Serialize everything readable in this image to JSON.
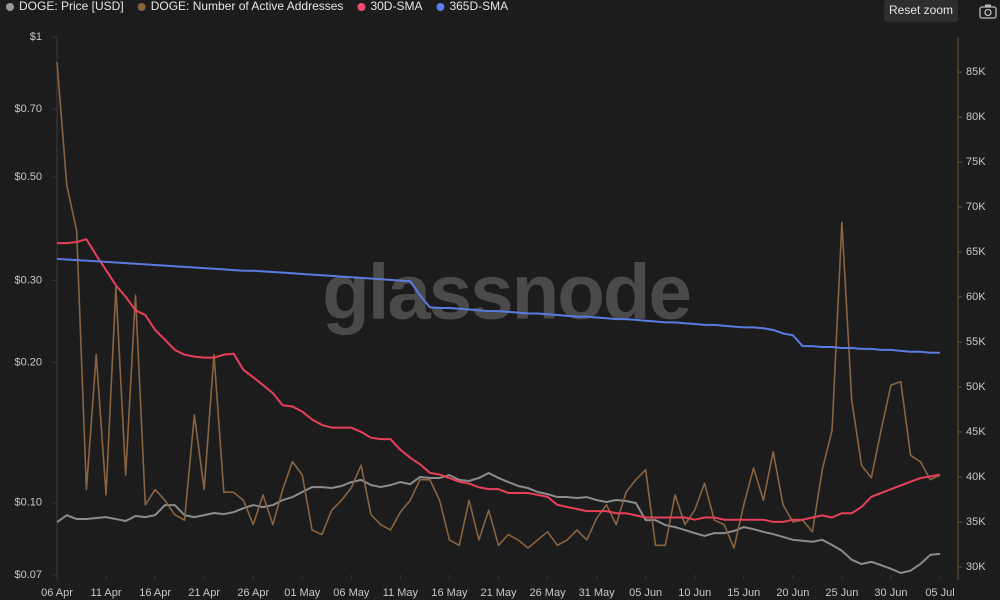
{
  "chart_data": {
    "type": "line",
    "watermark": "glassnode",
    "reset_button": "Reset zoom",
    "x": [
      "06 Apr",
      "07 Apr",
      "08 Apr",
      "09 Apr",
      "10 Apr",
      "11 Apr",
      "12 Apr",
      "13 Apr",
      "14 Apr",
      "15 Apr",
      "16 Apr",
      "17 Apr",
      "18 Apr",
      "19 Apr",
      "20 Apr",
      "21 Apr",
      "22 Apr",
      "23 Apr",
      "24 Apr",
      "25 Apr",
      "26 Apr",
      "27 Apr",
      "28 Apr",
      "29 Apr",
      "30 Apr",
      "01 May",
      "02 May",
      "03 May",
      "04 May",
      "05 May",
      "06 May",
      "07 May",
      "08 May",
      "09 May",
      "10 May",
      "11 May",
      "12 May",
      "13 May",
      "14 May",
      "15 May",
      "16 May",
      "17 May",
      "18 May",
      "19 May",
      "20 May",
      "21 May",
      "22 May",
      "23 May",
      "24 May",
      "25 May",
      "26 May",
      "27 May",
      "28 May",
      "29 May",
      "30 May",
      "31 May",
      "01 Jun",
      "02 Jun",
      "03 Jun",
      "04 Jun",
      "05 Jun",
      "06 Jun",
      "07 Jun",
      "08 Jun",
      "09 Jun",
      "10 Jun",
      "11 Jun",
      "12 Jun",
      "13 Jun",
      "14 Jun",
      "15 Jun",
      "16 Jun",
      "17 Jun",
      "18 Jun",
      "19 Jun",
      "20 Jun",
      "21 Jun",
      "22 Jun",
      "23 Jun",
      "24 Jun",
      "25 Jun",
      "26 Jun",
      "27 Jun",
      "28 Jun",
      "29 Jun",
      "30 Jun",
      "01 Jul",
      "02 Jul",
      "03 Jul",
      "04 Jul",
      "05 Jul"
    ],
    "xticks": [
      "06 Apr",
      "11 Apr",
      "16 Apr",
      "21 Apr",
      "26 Apr",
      "01 May",
      "06 May",
      "11 May",
      "16 May",
      "21 May",
      "26 May",
      "31 May",
      "05 Jun",
      "10 Jun",
      "15 Jun",
      "20 Jun",
      "25 Jun",
      "30 Jun",
      "05 Jul"
    ],
    "yscale": "log",
    "ylim": [
      0.07,
      1
    ],
    "yticks": [
      {
        "value": 1,
        "label": "$1"
      },
      {
        "value": 0.7,
        "label": "$0.70"
      },
      {
        "value": 0.5,
        "label": "$0.50"
      },
      {
        "value": 0.3,
        "label": "$0.30"
      },
      {
        "value": 0.2,
        "label": "$0.20"
      },
      {
        "value": 0.1,
        "label": "$0.10"
      },
      {
        "value": 0.07,
        "label": "$0.07"
      }
    ],
    "y2lim": [
      29100,
      88900
    ],
    "y2ticks": [
      {
        "value": 30000,
        "label": "30K"
      },
      {
        "value": 35000,
        "label": "35K"
      },
      {
        "value": 40000,
        "label": "40K"
      },
      {
        "value": 45000,
        "label": "45K"
      },
      {
        "value": 50000,
        "label": "50K"
      },
      {
        "value": 55000,
        "label": "55K"
      },
      {
        "value": 60000,
        "label": "60K"
      },
      {
        "value": 65000,
        "label": "65K"
      },
      {
        "value": 70000,
        "label": "70K"
      },
      {
        "value": 75000,
        "label": "75K"
      },
      {
        "value": 80000,
        "label": "80K"
      },
      {
        "value": 85000,
        "label": "85K"
      }
    ],
    "grid": false,
    "legend": "top-left",
    "series": [
      {
        "name": "DOGE: Price [USD]",
        "color": "#8c8c8c",
        "legend_color": "#9a9a9a",
        "values": [
          0.0909,
          0.0941,
          0.0923,
          0.0923,
          0.0928,
          0.0932,
          0.0923,
          0.0914,
          0.0937,
          0.0932,
          0.0941,
          0.0989,
          0.0989,
          0.0941,
          0.0932,
          0.0941,
          0.0951,
          0.0946,
          0.0955,
          0.0974,
          0.0989,
          0.0979,
          0.0989,
          0.1014,
          0.1029,
          0.1055,
          0.1081,
          0.1081,
          0.1076,
          0.1087,
          0.1108,
          0.112,
          0.1092,
          0.1081,
          0.1092,
          0.1108,
          0.1097,
          0.1136,
          0.1131,
          0.1131,
          0.1147,
          0.112,
          0.1114,
          0.1131,
          0.1159,
          0.1131,
          0.1108,
          0.1087,
          0.1076,
          0.1055,
          0.1044,
          0.1029,
          0.1029,
          0.1024,
          0.1029,
          0.1014,
          0.1004,
          0.1014,
          0.1009,
          0.0999,
          0.0918,
          0.0918,
          0.0896,
          0.0887,
          0.0874,
          0.0861,
          0.0849,
          0.0861,
          0.0861,
          0.087,
          0.0887,
          0.0878,
          0.0866,
          0.0857,
          0.0845,
          0.0833,
          0.0829,
          0.0825,
          0.0833,
          0.0812,
          0.0789,
          0.0755,
          0.0739,
          0.0747,
          0.0735,
          0.0722,
          0.0707,
          0.0715,
          0.0739,
          0.0773,
          0.0777
        ]
      },
      {
        "name": "DOGE: Number of Active Addresses",
        "color": "#8a6440",
        "legend_color": "#8a6440",
        "axis": "y2",
        "values": [
          86100,
          72400,
          67400,
          38600,
          53600,
          38000,
          61100,
          40200,
          60200,
          36900,
          38600,
          37400,
          35800,
          35200,
          46900,
          38600,
          53600,
          38300,
          38300,
          37400,
          34700,
          38000,
          34700,
          38600,
          41700,
          40200,
          34100,
          33600,
          36300,
          37400,
          38800,
          41300,
          35800,
          34700,
          34100,
          36100,
          37400,
          39700,
          39700,
          37400,
          33000,
          32400,
          37400,
          33000,
          36300,
          32400,
          33600,
          33000,
          32100,
          33000,
          33900,
          32400,
          33000,
          34100,
          33000,
          35400,
          36900,
          34700,
          38300,
          39700,
          40800,
          32400,
          32400,
          38000,
          34700,
          36300,
          39300,
          35200,
          34700,
          32100,
          36900,
          41000,
          37400,
          42800,
          36900,
          35000,
          35200,
          33900,
          40800,
          45200,
          68300,
          48600,
          41300,
          39900,
          45200,
          50200,
          50600,
          42400,
          41700,
          39700,
          40200
        ]
      },
      {
        "name": "30D-SMA",
        "color": "#e8405a",
        "legend_color": "#f0506e",
        "values": [
          0.361,
          0.361,
          0.363,
          0.368,
          0.34,
          0.316,
          0.293,
          0.277,
          0.259,
          0.253,
          0.235,
          0.224,
          0.213,
          0.208,
          0.206,
          0.205,
          0.205,
          0.208,
          0.209,
          0.193,
          0.186,
          0.179,
          0.172,
          0.162,
          0.161,
          0.157,
          0.151,
          0.147,
          0.145,
          0.145,
          0.145,
          0.142,
          0.138,
          0.137,
          0.137,
          0.13,
          0.125,
          0.121,
          0.116,
          0.115,
          0.113,
          0.111,
          0.11,
          0.108,
          0.107,
          0.107,
          0.105,
          0.105,
          0.105,
          0.104,
          0.103,
          0.099,
          0.098,
          0.097,
          0.096,
          0.096,
          0.096,
          0.095,
          0.095,
          0.094,
          0.093,
          0.093,
          0.093,
          0.093,
          0.093,
          0.092,
          0.093,
          0.093,
          0.092,
          0.092,
          0.092,
          0.092,
          0.092,
          0.091,
          0.091,
          0.092,
          0.092,
          0.093,
          0.094,
          0.093,
          0.095,
          0.095,
          0.098,
          0.103,
          0.105,
          0.107,
          0.109,
          0.111,
          0.113,
          0.114,
          0.115
        ]
      },
      {
        "name": "365D-SMA",
        "color": "#5b7be0",
        "legend_color": "#5a7ff0",
        "values": [
          0.334,
          0.333,
          0.332,
          0.331,
          0.33,
          0.329,
          0.328,
          0.327,
          0.326,
          0.325,
          0.324,
          0.323,
          0.322,
          0.321,
          0.32,
          0.319,
          0.318,
          0.317,
          0.316,
          0.315,
          0.315,
          0.314,
          0.313,
          0.312,
          0.311,
          0.31,
          0.309,
          0.308,
          0.307,
          0.306,
          0.305,
          0.304,
          0.303,
          0.302,
          0.301,
          0.3,
          0.299,
          0.279,
          0.263,
          0.262,
          0.262,
          0.261,
          0.26,
          0.259,
          0.258,
          0.258,
          0.257,
          0.256,
          0.255,
          0.255,
          0.254,
          0.253,
          0.252,
          0.251,
          0.251,
          0.25,
          0.249,
          0.248,
          0.248,
          0.247,
          0.246,
          0.245,
          0.244,
          0.244,
          0.243,
          0.242,
          0.241,
          0.241,
          0.24,
          0.239,
          0.238,
          0.238,
          0.237,
          0.235,
          0.231,
          0.229,
          0.217,
          0.217,
          0.216,
          0.216,
          0.215,
          0.215,
          0.214,
          0.214,
          0.213,
          0.213,
          0.212,
          0.211,
          0.211,
          0.21,
          0.21
        ]
      }
    ]
  }
}
